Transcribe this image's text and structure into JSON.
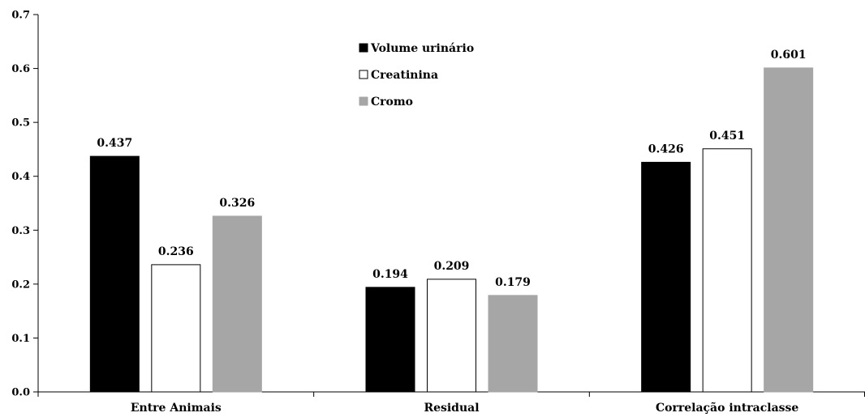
{
  "chart_data": {
    "type": "bar",
    "title": "",
    "xlabel": "",
    "ylabel": "",
    "ylim": [
      0,
      0.7
    ],
    "yticks": [
      "0.0",
      "0.1",
      "0.2",
      "0.3",
      "0.4",
      "0.5",
      "0.6",
      "0.7"
    ],
    "grid": false,
    "legend_position": "top-center",
    "categories": [
      "Entre Animais",
      "Residual",
      "Correlação intraclasse"
    ],
    "series": [
      {
        "name": "Volume urinário",
        "values": [
          0.437,
          0.194,
          0.426
        ],
        "labels": [
          "0.437",
          "0.194",
          "0.426"
        ],
        "color": "#000000",
        "fill": "#000000"
      },
      {
        "name": "Creatinina",
        "values": [
          0.236,
          0.209,
          0.451
        ],
        "labels": [
          "0.236",
          "0.209",
          "0.451"
        ],
        "color": "#000000",
        "fill": "#ffffff"
      },
      {
        "name": "Cromo",
        "values": [
          0.326,
          0.179,
          0.601
        ],
        "labels": [
          "0.326",
          "0.179",
          "0.601"
        ],
        "color": "#a6a6a6",
        "fill": "#a6a6a6"
      }
    ]
  }
}
